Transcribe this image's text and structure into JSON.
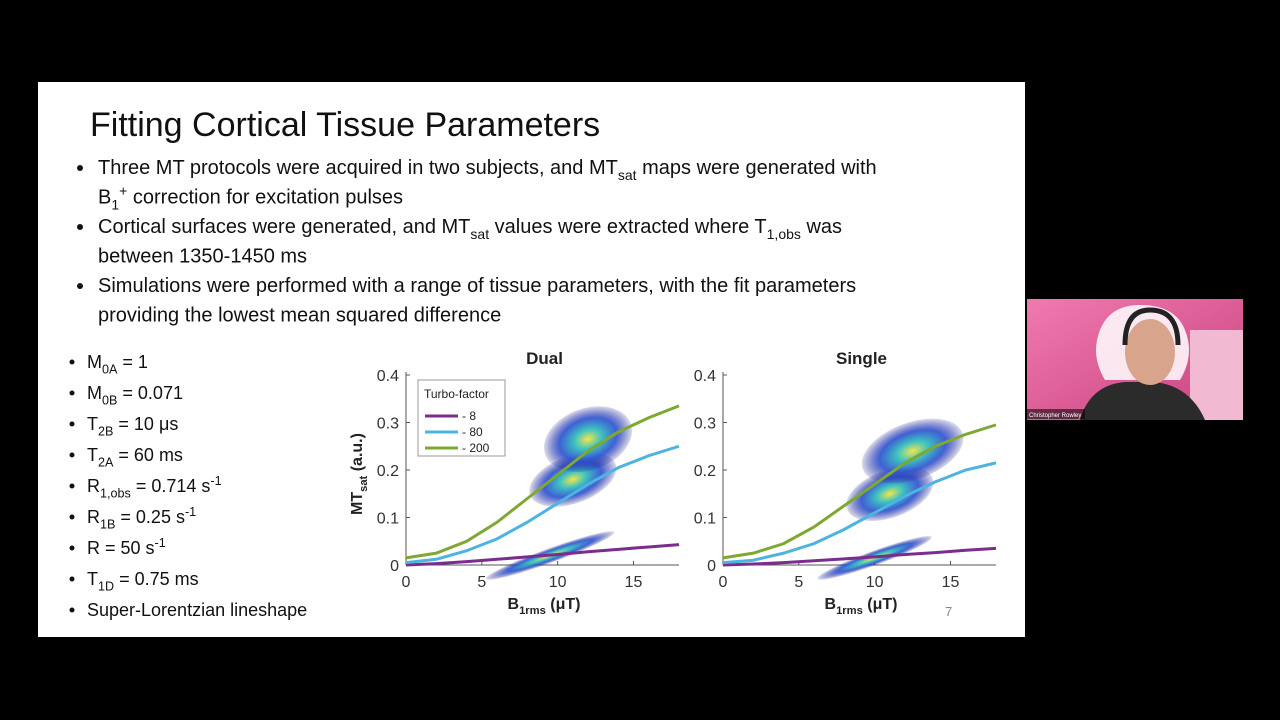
{
  "slide": {
    "title": "Fitting Cortical Tissue Parameters",
    "bullets": [
      {
        "lines": [
          [
            {
              "text": "Three MT protocols were acquired in two subjects, and MT"
            },
            {
              "sub": "sat"
            },
            {
              "text": " maps were generated with"
            }
          ],
          [
            {
              "text": "B"
            },
            {
              "sub": "1"
            },
            {
              "sup": "+"
            },
            {
              "text": " correction for excitation pulses"
            }
          ]
        ]
      },
      {
        "lines": [
          [
            {
              "text": "Cortical surfaces were generated, and MT"
            },
            {
              "sub": "sat"
            },
            {
              "text": " values were extracted where T"
            },
            {
              "sub": "1,obs"
            },
            {
              "text": " was"
            }
          ],
          [
            {
              "text": "between 1350-1450 ms"
            }
          ]
        ]
      },
      {
        "lines": [
          [
            {
              "text": "Simulations were performed with a range of tissue parameters, with the fit parameters"
            }
          ],
          [
            {
              "text": "providing the lowest mean squared difference"
            }
          ]
        ]
      }
    ],
    "params": [
      [
        {
          "text": "M"
        },
        {
          "sub": "0A"
        },
        {
          "text": " = 1"
        }
      ],
      [
        {
          "text": "M"
        },
        {
          "sub": "0B"
        },
        {
          "text": " = 0.071"
        }
      ],
      [
        {
          "text": "T"
        },
        {
          "sub": "2B"
        },
        {
          "text": " = 10 μs"
        }
      ],
      [
        {
          "text": "T"
        },
        {
          "sub": "2A"
        },
        {
          "text": " = 60 ms"
        }
      ],
      [
        {
          "text": "R"
        },
        {
          "sub": "1,obs"
        },
        {
          "text": " = 0.714 s"
        },
        {
          "sup": "-1"
        }
      ],
      [
        {
          "text": "R"
        },
        {
          "sub": "1B"
        },
        {
          "text": " = 0.25 s"
        },
        {
          "sup": "-1"
        }
      ],
      [
        {
          "text": "R = 50 s"
        },
        {
          "sup": "-1"
        }
      ],
      [
        {
          "text": "T"
        },
        {
          "sub": "1D"
        },
        {
          "text": " = 0.75 ms"
        }
      ],
      [
        {
          "text": "Super-Lorentzian lineshape"
        }
      ]
    ],
    "page_number": "7"
  },
  "chart_data": [
    {
      "type": "line",
      "title": "Dual",
      "ylabel": [
        {
          "text": "MT"
        },
        {
          "sub": "sat"
        },
        {
          "text": " (a.u.)"
        }
      ],
      "xlabel": [
        {
          "text": "B"
        },
        {
          "sub": "1rms"
        },
        {
          "text": " (μT)"
        }
      ],
      "legend_title": "Turbo-factor",
      "legend": "upper left",
      "x": [
        0,
        2,
        4,
        6,
        8,
        10,
        12,
        14,
        16,
        18
      ],
      "xlim": [
        0,
        18
      ],
      "xticks": [
        0,
        5,
        10,
        15
      ],
      "ylim": [
        0,
        0.4
      ],
      "yticks": [
        0,
        0.1,
        0.2,
        0.3,
        0.4
      ],
      "series": [
        {
          "name": "- 8",
          "color": "#7b2d8e",
          "values": [
            0,
            0.003,
            0.007,
            0.012,
            0.017,
            0.022,
            0.028,
            0.033,
            0.038,
            0.043
          ],
          "cloud_x": [
            5,
            14
          ],
          "cloud_y": [
            0.005,
            0.035
          ]
        },
        {
          "name": "- 80",
          "color": "#4db3e0",
          "values": [
            0.005,
            0.012,
            0.03,
            0.055,
            0.09,
            0.13,
            0.17,
            0.205,
            0.23,
            0.25
          ],
          "cloud_x": [
            8,
            14
          ],
          "cloud_y": [
            0.13,
            0.23
          ]
        },
        {
          "name": "- 200",
          "color": "#7fa832",
          "values": [
            0.015,
            0.025,
            0.05,
            0.09,
            0.14,
            0.19,
            0.24,
            0.28,
            0.31,
            0.335
          ],
          "cloud_x": [
            9,
            15
          ],
          "cloud_y": [
            0.2,
            0.33
          ]
        }
      ]
    },
    {
      "type": "line",
      "title": "Single",
      "xlabel": [
        {
          "text": "B"
        },
        {
          "sub": "1rms"
        },
        {
          "text": " (μT)"
        }
      ],
      "x": [
        0,
        2,
        4,
        6,
        8,
        10,
        12,
        14,
        16,
        18
      ],
      "xlim": [
        0,
        18
      ],
      "xticks": [
        0,
        5,
        10,
        15
      ],
      "ylim": [
        0,
        0.4
      ],
      "yticks": [
        0,
        0.1,
        0.2,
        0.3,
        0.4
      ],
      "series": [
        {
          "color": "#7b2d8e",
          "values": [
            0,
            0.002,
            0.005,
            0.009,
            0.013,
            0.017,
            0.022,
            0.026,
            0.031,
            0.035
          ],
          "cloud_x": [
            6,
            14
          ],
          "cloud_y": [
            0,
            0.03
          ]
        },
        {
          "color": "#4db3e0",
          "values": [
            0.005,
            0.01,
            0.025,
            0.045,
            0.075,
            0.11,
            0.145,
            0.175,
            0.2,
            0.215
          ],
          "cloud_x": [
            8,
            14
          ],
          "cloud_y": [
            0.1,
            0.2
          ]
        },
        {
          "color": "#7fa832",
          "values": [
            0.015,
            0.025,
            0.045,
            0.08,
            0.125,
            0.17,
            0.215,
            0.25,
            0.275,
            0.295
          ],
          "cloud_x": [
            9,
            16
          ],
          "cloud_y": [
            0.18,
            0.3
          ]
        }
      ]
    }
  ],
  "webcam": {
    "name": "Christopher Rowley"
  }
}
